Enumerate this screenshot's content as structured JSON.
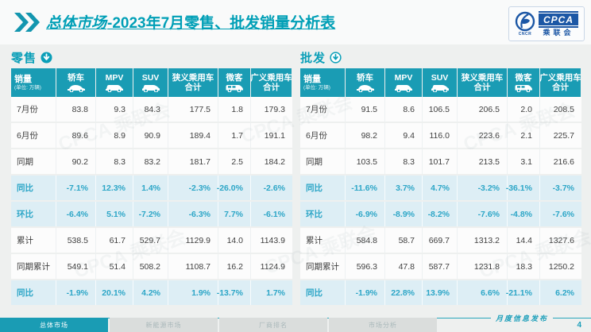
{
  "page": {
    "title_prefix": "总体市场",
    "title_rest": "-2023年7月零售、批发销量分析表",
    "footer_note": "月度信息发布",
    "page_number": "4",
    "accent_color": "#1a9cb4",
    "highlight_bg": "#ddeef5",
    "highlight_text": "#2da6c7"
  },
  "logo": {
    "text": "CPCA",
    "subtext": "乘联会",
    "micro": "CNCR"
  },
  "unit": {
    "label": "销量",
    "sub": "(单位: 万辆)"
  },
  "columns": [
    {
      "label": "轿车",
      "icon": "sedan"
    },
    {
      "label": "MPV",
      "icon": "mpv"
    },
    {
      "label": "SUV",
      "icon": "suv"
    },
    {
      "label": "狭义乘用车",
      "sub": "合计"
    },
    {
      "label": "微客",
      "icon": "van"
    },
    {
      "label": "广义乘用车",
      "sub": "合计"
    }
  ],
  "retail": {
    "title": "零售",
    "arrow": "solid",
    "rows": [
      {
        "label": "7月份",
        "type": "data",
        "values": [
          "83.8",
          "9.3",
          "84.3",
          "177.5",
          "1.8",
          "179.3"
        ]
      },
      {
        "label": "6月份",
        "type": "data",
        "values": [
          "89.6",
          "8.9",
          "90.9",
          "189.4",
          "1.7",
          "191.1"
        ]
      },
      {
        "label": "同期",
        "type": "data",
        "values": [
          "90.2",
          "8.3",
          "83.2",
          "181.7",
          "2.5",
          "184.2"
        ]
      },
      {
        "label": "同比",
        "type": "pct",
        "values": [
          "-7.1%",
          "12.3%",
          "1.4%",
          "-2.3%",
          "-26.0%",
          "-2.6%"
        ]
      },
      {
        "label": "环比",
        "type": "pct",
        "values": [
          "-6.4%",
          "5.1%",
          "-7.2%",
          "-6.3%",
          "7.7%",
          "-6.1%"
        ]
      },
      {
        "label": "累计",
        "type": "data",
        "values": [
          "538.5",
          "61.7",
          "529.7",
          "1129.9",
          "14.0",
          "1143.9"
        ]
      },
      {
        "label": "同期累计",
        "type": "data",
        "values": [
          "549.1",
          "51.4",
          "508.2",
          "1108.7",
          "16.2",
          "1124.9"
        ]
      },
      {
        "label": "同比",
        "type": "pct",
        "values": [
          "-1.9%",
          "20.1%",
          "4.2%",
          "1.9%",
          "-13.7%",
          "1.7%"
        ]
      }
    ]
  },
  "wholesale": {
    "title": "批发",
    "arrow": "outline",
    "rows": [
      {
        "label": "7月份",
        "type": "data",
        "values": [
          "91.5",
          "8.6",
          "106.5",
          "206.5",
          "2.0",
          "208.5"
        ]
      },
      {
        "label": "6月份",
        "type": "data",
        "values": [
          "98.2",
          "9.4",
          "116.0",
          "223.6",
          "2.1",
          "225.7"
        ]
      },
      {
        "label": "同期",
        "type": "data",
        "values": [
          "103.5",
          "8.3",
          "101.7",
          "213.5",
          "3.1",
          "216.6"
        ]
      },
      {
        "label": "同比",
        "type": "pct",
        "values": [
          "-11.6%",
          "3.7%",
          "4.7%",
          "-3.2%",
          "-36.1%",
          "-3.7%"
        ]
      },
      {
        "label": "环比",
        "type": "pct",
        "values": [
          "-6.9%",
          "-8.9%",
          "-8.2%",
          "-7.6%",
          "-4.8%",
          "-7.6%"
        ]
      },
      {
        "label": "累计",
        "type": "data",
        "values": [
          "584.8",
          "58.7",
          "669.7",
          "1313.2",
          "14.4",
          "1327.6"
        ]
      },
      {
        "label": "同期累计",
        "type": "data",
        "values": [
          "596.3",
          "47.8",
          "587.7",
          "1231.8",
          "18.3",
          "1250.2"
        ]
      },
      {
        "label": "同比",
        "type": "pct",
        "values": [
          "-1.9%",
          "22.8%",
          "13.9%",
          "6.6%",
          "-21.1%",
          "6.2%"
        ]
      }
    ]
  },
  "tabs": [
    {
      "label": "总体市场",
      "active": true
    },
    {
      "label": "新能源市场",
      "active": false
    },
    {
      "label": "厂商排名",
      "active": false
    },
    {
      "label": "市场分析",
      "active": false
    }
  ],
  "watermark": "CPCA 乘联会"
}
